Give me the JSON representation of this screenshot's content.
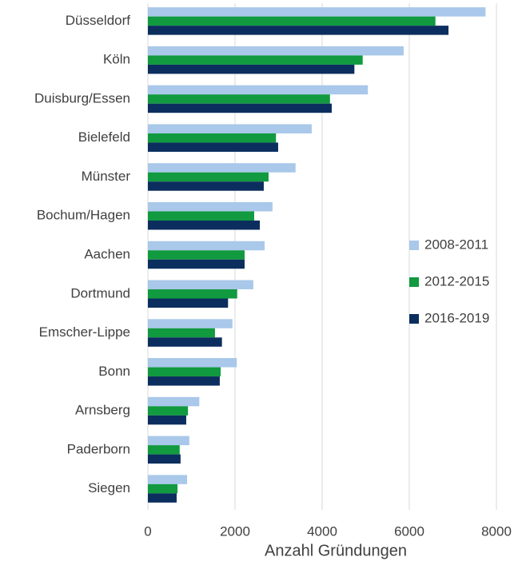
{
  "chart_data": {
    "type": "barh",
    "xlabel": "Anzahl Gründungen",
    "categories": [
      "Düsseldorf",
      "Köln",
      "Duisburg/Essen",
      "Bielefeld",
      "Münster",
      "Bochum/Hagen",
      "Aachen",
      "Dortmund",
      "Emscher-Lippe",
      "Bonn",
      "Arnsberg",
      "Paderborn",
      "Siegen"
    ],
    "series": [
      {
        "name": "2008-2011",
        "color": "#a9c8ea",
        "values": [
          7750,
          5870,
          5050,
          3760,
          3390,
          2860,
          2680,
          2420,
          1940,
          2040,
          1180,
          950,
          900
        ]
      },
      {
        "name": "2012-2015",
        "color": "#119a3f",
        "values": [
          6600,
          4930,
          4180,
          2940,
          2770,
          2440,
          2220,
          2050,
          1540,
          1670,
          920,
          730,
          680
        ]
      },
      {
        "name": "2016-2019",
        "color": "#0b2e5e",
        "values": [
          6900,
          4740,
          4220,
          2990,
          2660,
          2570,
          2220,
          1840,
          1700,
          1650,
          880,
          750,
          660
        ]
      }
    ],
    "xlim": [
      0,
      8000
    ],
    "xticks": [
      0,
      2000,
      4000,
      6000,
      8000
    ],
    "grid": true,
    "legend": "right"
  }
}
